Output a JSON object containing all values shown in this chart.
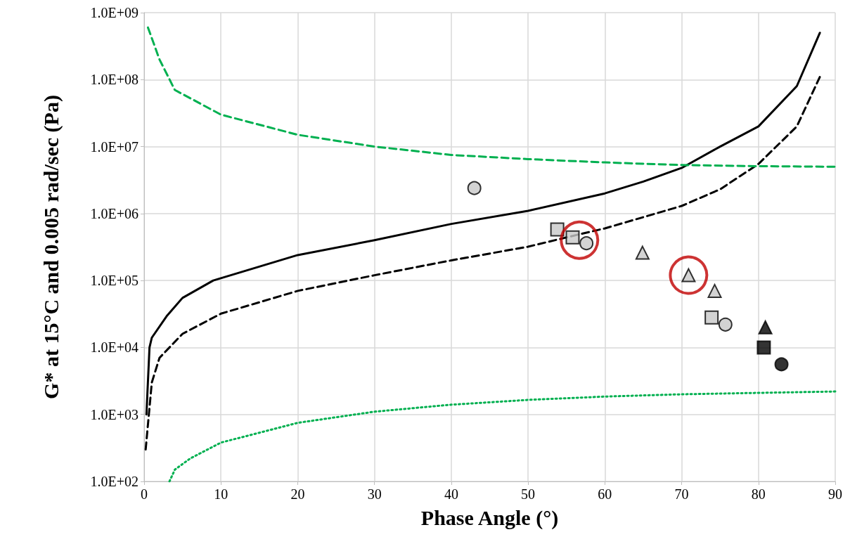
{
  "chart_data": {
    "type": "scatter",
    "xlabel": "Phase Angle (°)",
    "ylabel": "G* at 15°C and 0.005 rad/sec (Pa)",
    "log": "y",
    "grid": true,
    "xlim": [
      0,
      90
    ],
    "xticks": [
      0,
      10,
      20,
      30,
      40,
      50,
      60,
      70,
      80,
      90
    ],
    "ylim": [
      100,
      1000000000
    ],
    "yticks": [
      {
        "value": 100,
        "label": "1.0E+02"
      },
      {
        "value": 1000,
        "label": "1.0E+03"
      },
      {
        "value": 10000,
        "label": "1.0E+04"
      },
      {
        "value": 100000,
        "label": "1.0E+05"
      },
      {
        "value": 1000000,
        "label": "1.0E+06"
      },
      {
        "value": 10000000,
        "label": "1.0E+07"
      },
      {
        "value": 100000000,
        "label": "1.0E+08"
      },
      {
        "value": 1000000000,
        "label": "1.0E+09"
      }
    ],
    "series": [
      {
        "type": "line",
        "color": "#000000",
        "line_style": "solid",
        "marker": "none",
        "x": [
          0.3,
          0.7,
          1,
          3,
          5,
          9,
          20,
          30,
          40,
          50,
          60,
          65,
          70,
          75,
          80,
          85,
          88
        ],
        "values": [
          1000,
          10000,
          14000,
          30000,
          55000,
          100000,
          240000,
          400000,
          700000,
          1100000,
          2000000,
          3000000,
          4800000,
          10000000,
          20000000,
          80000000,
          500000000
        ]
      },
      {
        "type": "line",
        "color": "#000000",
        "line_style": "dashed",
        "marker": "none",
        "x": [
          0.2,
          1,
          2,
          5,
          10,
          20,
          30,
          40,
          50,
          57,
          60,
          70,
          75,
          80,
          85,
          88
        ],
        "values": [
          300,
          3000,
          7000,
          16000,
          32000,
          70000,
          120000,
          200000,
          320000,
          500000,
          600000,
          1300000,
          2300000,
          5500000,
          20000000,
          110000000
        ]
      },
      {
        "type": "line",
        "color": "#00b050",
        "line_style": "dashed",
        "marker": "none",
        "x": [
          0.5,
          2,
          4,
          10,
          20,
          30,
          40,
          50,
          60,
          70,
          80,
          90
        ],
        "values": [
          600000000,
          200000000,
          70000000,
          30000000,
          15000000,
          10000000,
          7500000,
          6500000,
          5800000,
          5300000,
          5100000,
          5000000
        ]
      },
      {
        "type": "line",
        "color": "#00b050",
        "line_style": "dotted",
        "marker": "none",
        "x": [
          3.3,
          4,
          6,
          10,
          20,
          30,
          40,
          50,
          60,
          70,
          80,
          90
        ],
        "values": [
          100,
          150,
          220,
          380,
          750,
          1100,
          1400,
          1650,
          1850,
          2000,
          2100,
          2200
        ]
      },
      {
        "type": "scatter",
        "color": "#c8c8c8",
        "marker": "circle",
        "x": [
          43.0,
          57.6,
          75.7
        ],
        "values": [
          2400000,
          360000,
          22000
        ]
      },
      {
        "type": "scatter",
        "color": "#c8c8c8",
        "marker": "square",
        "x": [
          53.8,
          55.8,
          73.9
        ],
        "values": [
          580000,
          440000,
          28000
        ]
      },
      {
        "type": "scatter",
        "color": "#c8c8c8",
        "marker": "triangle",
        "x": [
          64.9,
          70.9,
          74.3
        ],
        "values": [
          260000,
          120000,
          70000
        ]
      },
      {
        "type": "scatter",
        "color": "#000000",
        "marker": "circle",
        "x": [
          83.0
        ],
        "values": [
          5600
        ]
      },
      {
        "type": "scatter",
        "color": "#000000",
        "marker": "square",
        "x": [
          80.7
        ],
        "values": [
          10000
        ]
      },
      {
        "type": "scatter",
        "color": "#000000",
        "marker": "triangle",
        "x": [
          80.9
        ],
        "values": [
          20000
        ]
      },
      {
        "type": "scatter",
        "color": "#c00000",
        "marker": "circle",
        "x": [
          56.7,
          70.9
        ],
        "values": [
          400000,
          120000
        ]
      }
    ]
  }
}
